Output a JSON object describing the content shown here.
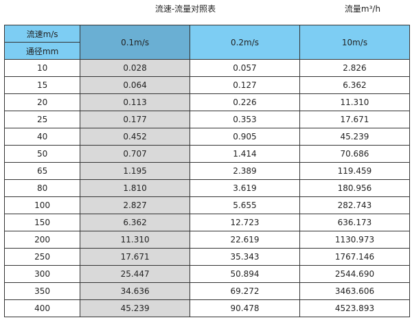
{
  "title": "流速-流量对照表",
  "unit": "流量m³/h",
  "header": {
    "velocity_label": "流速m/s",
    "diameter_label": "通径mm",
    "columns": [
      "0.1m/s",
      "0.2m/s",
      "10m/s"
    ]
  },
  "colors": {
    "header": "#7dcdf3",
    "selected_header": "#6aafd3",
    "selected_column": "#d9d9d9"
  },
  "rows": [
    [
      "10",
      "0.028",
      "0.057",
      "2.826"
    ],
    [
      "15",
      "0.064",
      "0.127",
      "6.362"
    ],
    [
      "20",
      "0.113",
      "0.226",
      "11.310"
    ],
    [
      "25",
      "0.177",
      "0.353",
      "17.671"
    ],
    [
      "40",
      "0.452",
      "0.905",
      "45.239"
    ],
    [
      "50",
      "0.707",
      "1.414",
      "70.686"
    ],
    [
      "65",
      "1.195",
      "2.389",
      "119.459"
    ],
    [
      "80",
      "1.810",
      "3.619",
      "180.956"
    ],
    [
      "100",
      "2.827",
      "5.655",
      "282.743"
    ],
    [
      "150",
      "6.362",
      "12.723",
      "636.173"
    ],
    [
      "200",
      "11.310",
      "22.619",
      "1130.973"
    ],
    [
      "250",
      "17.671",
      "35.343",
      "1767.146"
    ],
    [
      "300",
      "25.447",
      "50.894",
      "2544.690"
    ],
    [
      "350",
      "34.636",
      "69.272",
      "3463.606"
    ],
    [
      "400",
      "45.239",
      "90.478",
      "4523.893"
    ]
  ]
}
